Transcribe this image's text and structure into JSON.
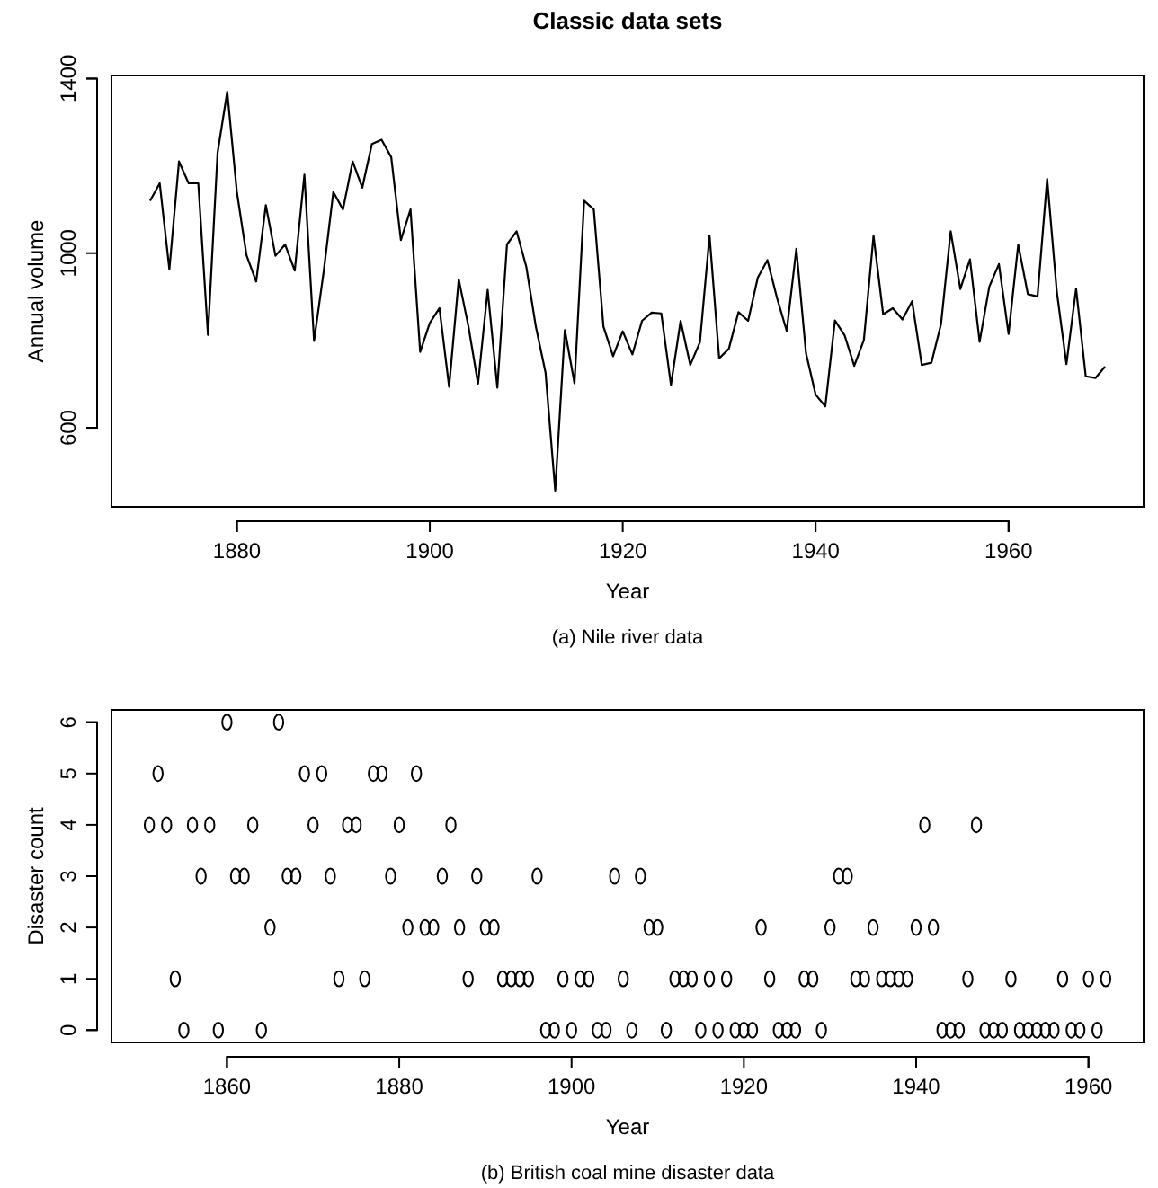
{
  "chart_data": [
    {
      "type": "line",
      "title": "Classic data sets",
      "xlabel": "Year",
      "ylabel": "Annual volume",
      "annotations": [
        "(a) Nile river data"
      ],
      "x": [
        1871,
        1872,
        1873,
        1874,
        1875,
        1876,
        1877,
        1878,
        1879,
        1880,
        1881,
        1882,
        1883,
        1884,
        1885,
        1886,
        1887,
        1888,
        1889,
        1890,
        1891,
        1892,
        1893,
        1894,
        1895,
        1896,
        1897,
        1898,
        1899,
        1900,
        1901,
        1902,
        1903,
        1904,
        1905,
        1906,
        1907,
        1908,
        1909,
        1910,
        1911,
        1912,
        1913,
        1914,
        1915,
        1916,
        1917,
        1918,
        1919,
        1920,
        1921,
        1922,
        1923,
        1924,
        1925,
        1926,
        1927,
        1928,
        1929,
        1930,
        1931,
        1932,
        1933,
        1934,
        1935,
        1936,
        1937,
        1938,
        1939,
        1940,
        1941,
        1942,
        1943,
        1944,
        1945,
        1946,
        1947,
        1948,
        1949,
        1950,
        1951,
        1952,
        1953,
        1954,
        1955,
        1956,
        1957,
        1958,
        1959,
        1960,
        1961,
        1962,
        1963,
        1964,
        1965,
        1966,
        1967,
        1968,
        1969,
        1970
      ],
      "series": [
        {
          "color": "#000000",
          "values": [
            1120,
            1160,
            963,
            1210,
            1160,
            1160,
            813,
            1230,
            1370,
            1140,
            995,
            935,
            1110,
            994,
            1020,
            960,
            1180,
            799,
            958,
            1140,
            1100,
            1210,
            1150,
            1250,
            1260,
            1220,
            1030,
            1100,
            774,
            840,
            874,
            694,
            940,
            833,
            701,
            916,
            692,
            1020,
            1050,
            969,
            831,
            726,
            456,
            824,
            702,
            1120,
            1100,
            832,
            764,
            821,
            768,
            845,
            864,
            862,
            698,
            845,
            744,
            796,
            1040,
            759,
            781,
            865,
            845,
            944,
            984,
            897,
            822,
            1010,
            771,
            676,
            649,
            846,
            812,
            742,
            801,
            1040,
            860,
            874,
            848,
            890,
            744,
            749,
            838,
            1050,
            918,
            986,
            797,
            923,
            975,
            815,
            1020,
            906,
            901,
            1170,
            912,
            746,
            919,
            718,
            714,
            740
          ]
        }
      ],
      "xlim": [
        1867,
        1974
      ],
      "xticks": [
        1880,
        1900,
        1920,
        1940,
        1960
      ],
      "ylim": [
        419,
        1407
      ],
      "yticks": [
        600,
        1000,
        1400
      ],
      "grid": false,
      "line_style": "solid"
    },
    {
      "type": "scatter",
      "xlabel": "Year",
      "ylabel": "Disaster count",
      "annotations": [
        "(b) British coal mine disaster data"
      ],
      "x": [
        1851,
        1852,
        1853,
        1854,
        1855,
        1856,
        1857,
        1858,
        1859,
        1860,
        1861,
        1862,
        1863,
        1864,
        1865,
        1866,
        1867,
        1868,
        1869,
        1870,
        1871,
        1872,
        1873,
        1874,
        1875,
        1876,
        1877,
        1878,
        1879,
        1880,
        1881,
        1882,
        1883,
        1884,
        1885,
        1886,
        1887,
        1888,
        1889,
        1890,
        1891,
        1892,
        1893,
        1894,
        1895,
        1896,
        1897,
        1898,
        1899,
        1900,
        1901,
        1902,
        1903,
        1904,
        1905,
        1906,
        1907,
        1908,
        1909,
        1910,
        1911,
        1912,
        1913,
        1914,
        1915,
        1916,
        1917,
        1918,
        1919,
        1920,
        1921,
        1922,
        1923,
        1924,
        1925,
        1926,
        1927,
        1928,
        1929,
        1930,
        1931,
        1932,
        1933,
        1934,
        1935,
        1936,
        1937,
        1938,
        1939,
        1940,
        1941,
        1942,
        1943,
        1944,
        1945,
        1946,
        1947,
        1948,
        1949,
        1950,
        1951,
        1952,
        1953,
        1954,
        1955,
        1956,
        1957,
        1958,
        1959,
        1960,
        1961,
        1962
      ],
      "series": [
        {
          "color": "#000000",
          "values": [
            4,
            5,
            4,
            1,
            0,
            4,
            3,
            4,
            0,
            6,
            3,
            3,
            4,
            0,
            2,
            6,
            3,
            3,
            5,
            4,
            5,
            3,
            1,
            4,
            4,
            1,
            5,
            5,
            3,
            4,
            2,
            5,
            2,
            2,
            3,
            4,
            2,
            1,
            3,
            2,
            2,
            1,
            1,
            1,
            1,
            3,
            0,
            0,
            1,
            0,
            1,
            1,
            0,
            0,
            3,
            1,
            0,
            3,
            2,
            2,
            0,
            1,
            1,
            1,
            0,
            1,
            0,
            1,
            0,
            0,
            0,
            2,
            1,
            0,
            0,
            0,
            1,
            1,
            0,
            2,
            3,
            3,
            1,
            1,
            2,
            1,
            1,
            1,
            1,
            2,
            4,
            2,
            0,
            0,
            0,
            1,
            4,
            0,
            0,
            0,
            1,
            0,
            0,
            0,
            0,
            0,
            1,
            0,
            0,
            1,
            0,
            1
          ]
        }
      ],
      "xlim": [
        1846.6,
        1966.4
      ],
      "xticks": [
        1860,
        1880,
        1900,
        1920,
        1940,
        1960
      ],
      "ylim": [
        -0.24,
        6.24
      ],
      "yticks": [
        0,
        1,
        2,
        3,
        4,
        5,
        6
      ],
      "grid": false,
      "marker": "circle"
    }
  ]
}
